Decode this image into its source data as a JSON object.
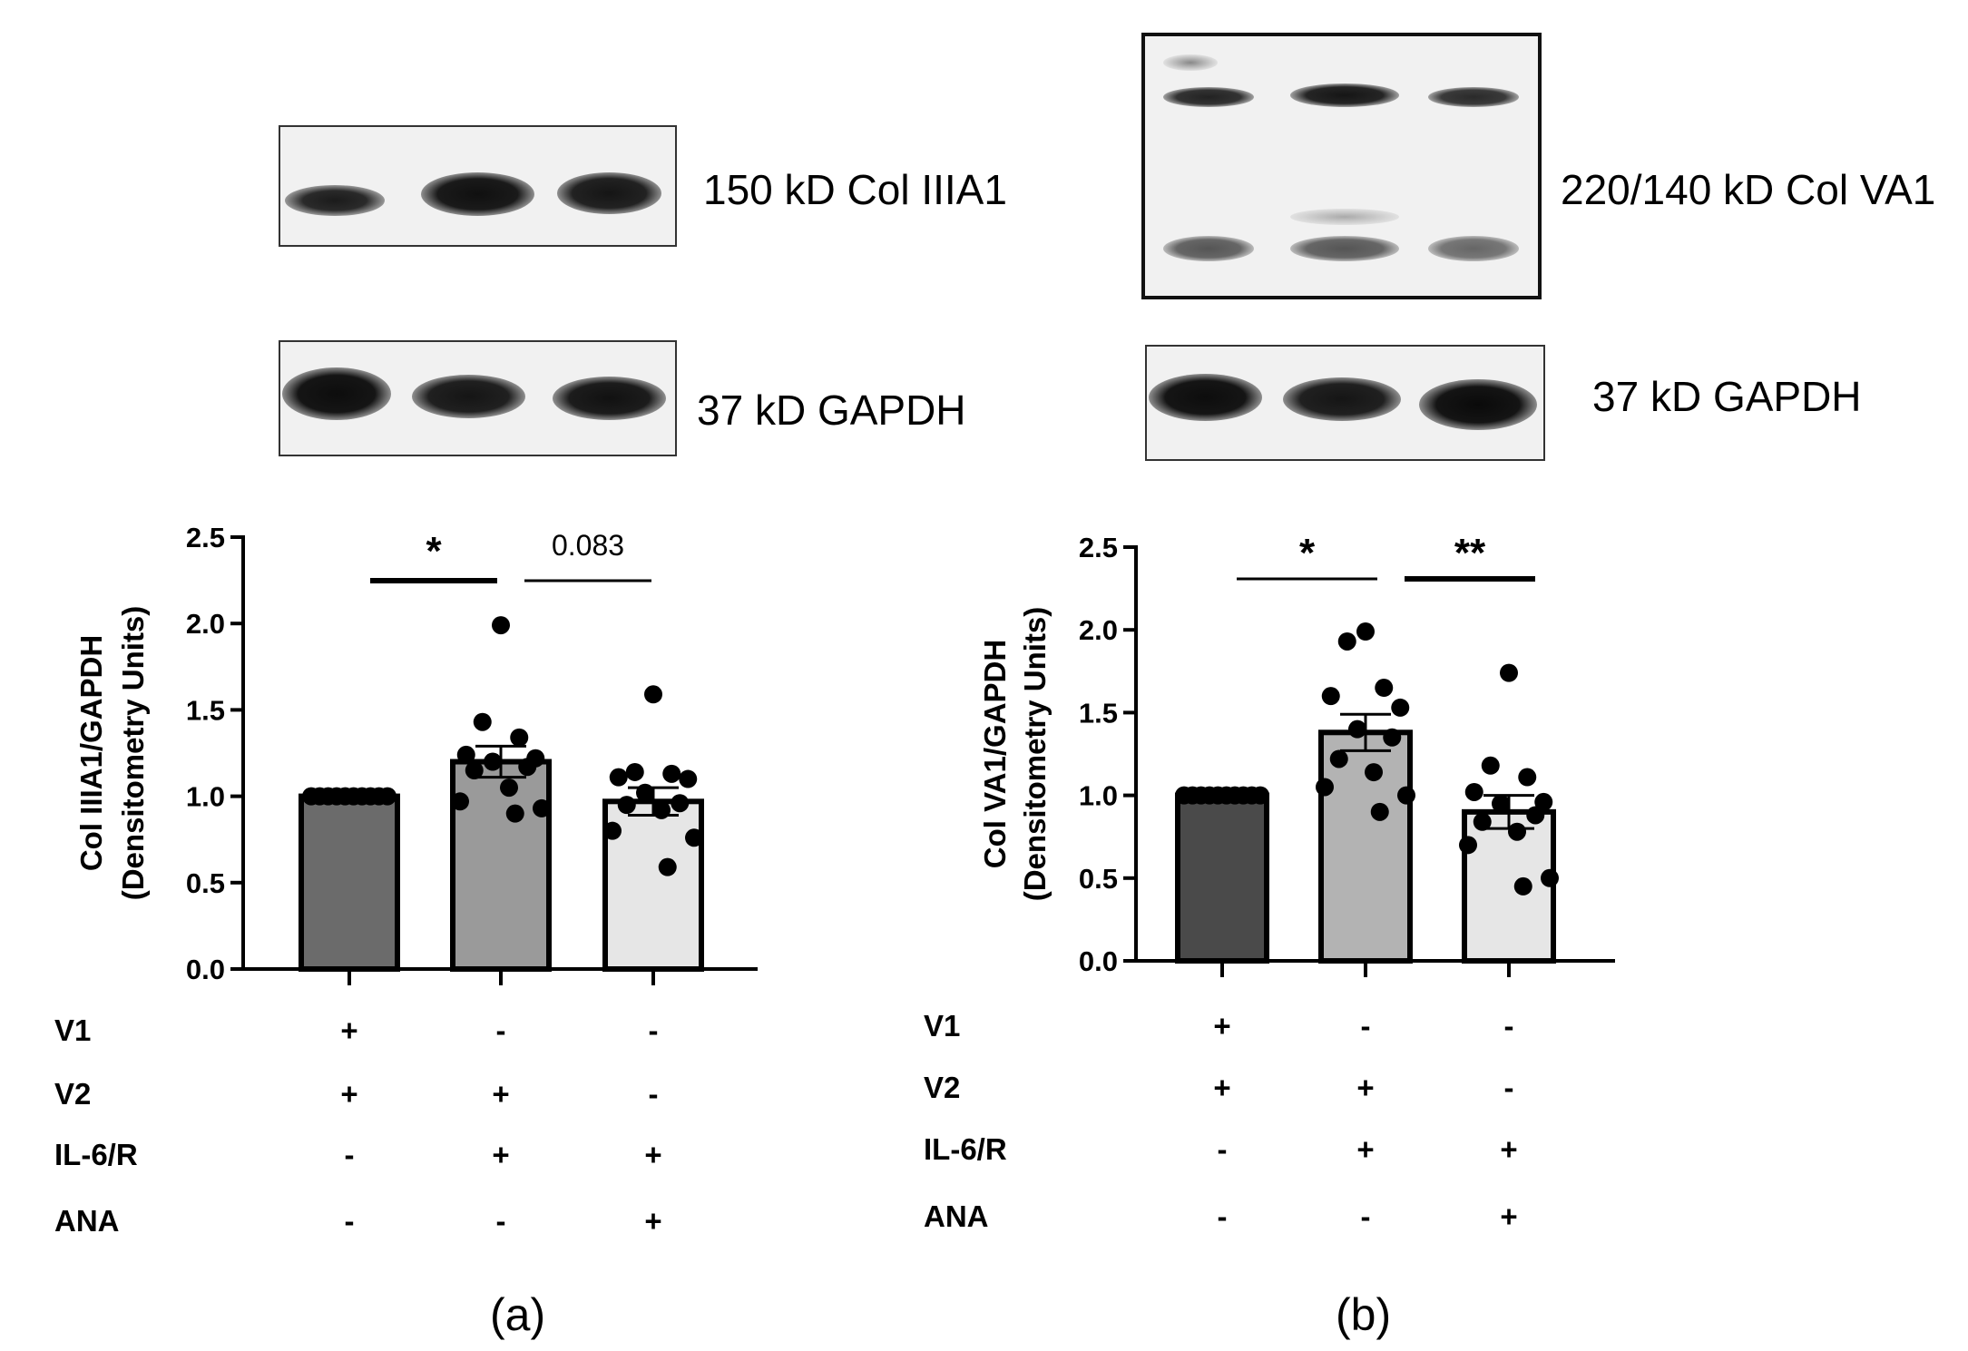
{
  "panels": [
    {
      "id": "a",
      "caption": "(a)",
      "blot_top_label": "150 kD Col IIIA1",
      "blot_bottom_label": "37 kD GAPDH"
    },
    {
      "id": "b",
      "caption": "(b)",
      "blot_top_label": "220/140 kD Col VA1",
      "blot_bottom_label": "37 kD GAPDH"
    }
  ],
  "chart_data": [
    {
      "type": "bar",
      "panel": "a",
      "ylabel_line1": "Col IIIA1/GAPDH",
      "ylabel_line2": "(Densitometry Units)",
      "ylim": [
        0,
        2.5
      ],
      "yticks": [
        "0.0",
        "0.5",
        "1.0",
        "1.5",
        "2.0",
        "2.5"
      ],
      "categories": [
        "group1",
        "group2",
        "group3"
      ],
      "values": [
        1.0,
        1.2,
        0.97
      ],
      "sem": [
        0,
        0.09,
        0.08
      ],
      "bar_colors": [
        "#6b6b6b",
        "#9a9a9a",
        "#e6e6e6"
      ],
      "points": [
        [
          1,
          1,
          1,
          1,
          1,
          1,
          1,
          1,
          1,
          1
        ],
        [
          1.99,
          1.43,
          1.34,
          1.24,
          1.22,
          1.2,
          1.17,
          1.15,
          1.05,
          0.97,
          0.93,
          0.9
        ],
        [
          1.59,
          1.14,
          1.13,
          1.11,
          1.1,
          1.02,
          0.96,
          0.95,
          0.92,
          0.8,
          0.76,
          0.59
        ]
      ],
      "comparisons": [
        {
          "from": 0,
          "to": 1,
          "label": "*"
        },
        {
          "from": 1,
          "to": 2,
          "label": "0.083"
        }
      ]
    },
    {
      "type": "bar",
      "panel": "b",
      "ylabel_line1": "Col VA1/GAPDH",
      "ylabel_line2": "(Densitometry Units)",
      "ylim": [
        0,
        2.5
      ],
      "yticks": [
        "0.0",
        "0.5",
        "1.0",
        "1.5",
        "2.0",
        "2.5"
      ],
      "categories": [
        "group1",
        "group2",
        "group3"
      ],
      "values": [
        1.0,
        1.38,
        0.9
      ],
      "sem": [
        0,
        0.11,
        0.1
      ],
      "bar_colors": [
        "#4a4a4a",
        "#b3b3b3",
        "#e6e6e6"
      ],
      "points": [
        [
          1,
          1,
          1,
          1,
          1,
          1,
          1,
          1,
          1,
          1
        ],
        [
          1.99,
          1.93,
          1.65,
          1.6,
          1.53,
          1.4,
          1.35,
          1.22,
          1.14,
          1.05,
          1.0,
          0.9
        ],
        [
          1.74,
          1.18,
          1.11,
          1.02,
          0.96,
          0.95,
          0.88,
          0.84,
          0.78,
          0.7,
          0.5,
          0.45
        ]
      ],
      "comparisons": [
        {
          "from": 0,
          "to": 1,
          "label": "*"
        },
        {
          "from": 1,
          "to": 2,
          "label": "**"
        }
      ]
    }
  ],
  "treatment_table": {
    "row_labels": [
      "V1",
      "V2",
      "IL-6/R",
      "ANA"
    ],
    "signs": [
      [
        "+",
        "-",
        "-"
      ],
      [
        "+",
        "+",
        "-"
      ],
      [
        "-",
        "+",
        "+"
      ],
      [
        "-",
        "-",
        "+"
      ]
    ]
  }
}
